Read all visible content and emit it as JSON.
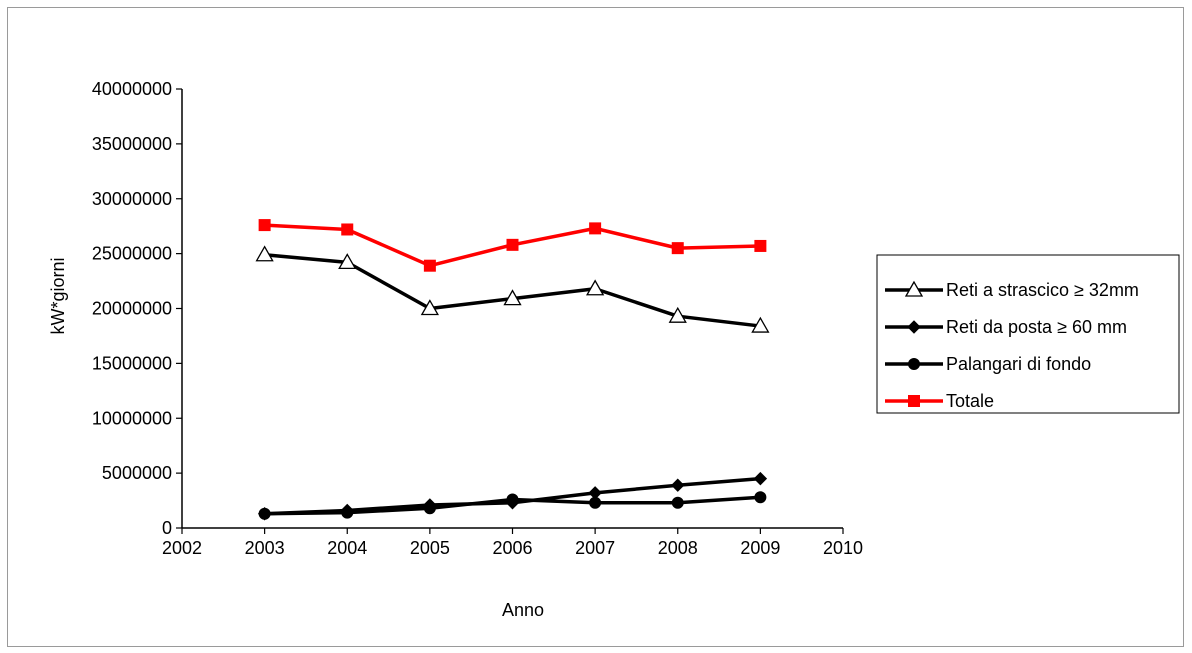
{
  "chart_data": {
    "type": "line",
    "title": "",
    "xlabel": "Anno",
    "ylabel": "kW*giorni",
    "xlim": [
      2002,
      2010
    ],
    "ylim": [
      0,
      40000000
    ],
    "x_ticks": [
      "2002",
      "2003",
      "2004",
      "2005",
      "2006",
      "2007",
      "2008",
      "2009",
      "2010"
    ],
    "y_ticks": [
      "0",
      "5000000",
      "10000000",
      "15000000",
      "20000000",
      "25000000",
      "30000000",
      "35000000",
      "40000000"
    ],
    "grid": false,
    "legend_position": "right",
    "x": [
      2003,
      2004,
      2005,
      2006,
      2007,
      2008,
      2009
    ],
    "series": [
      {
        "name": "Reti a strascico ≥ 32mm",
        "color": "#000000",
        "marker": "open-triangle",
        "values": [
          24900000,
          24200000,
          20000000,
          20900000,
          21800000,
          19300000,
          18400000
        ]
      },
      {
        "name": "Reti da posta ≥ 60 mm",
        "color": "#000000",
        "marker": "diamond",
        "values": [
          1300000,
          1600000,
          2100000,
          2300000,
          3200000,
          3900000,
          4500000
        ]
      },
      {
        "name": "Palangari di fondo",
        "color": "#000000",
        "marker": "circle",
        "values": [
          1300000,
          1400000,
          1800000,
          2600000,
          2300000,
          2300000,
          2800000
        ]
      },
      {
        "name": "Totale",
        "color": "#ff0000",
        "marker": "square",
        "values": [
          27600000,
          27200000,
          23900000,
          25800000,
          27300000,
          25500000,
          25700000
        ]
      }
    ]
  }
}
